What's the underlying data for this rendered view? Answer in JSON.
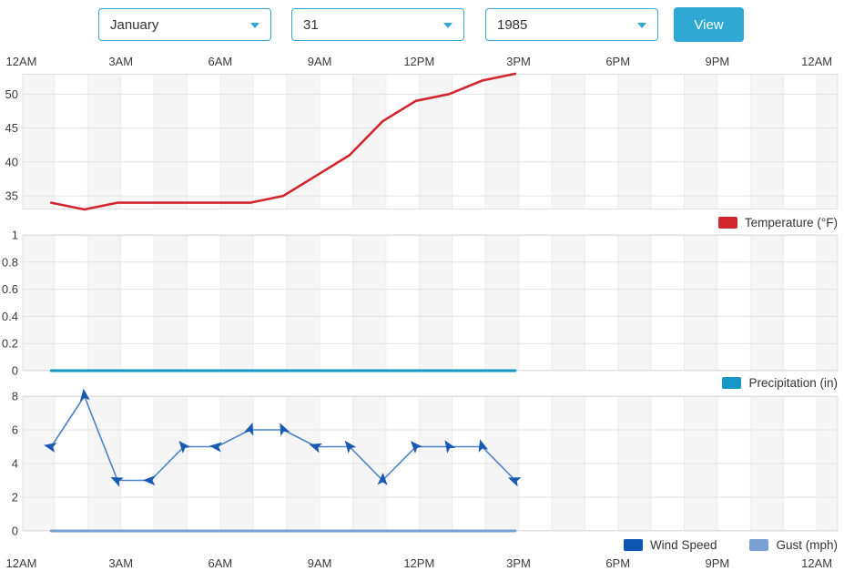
{
  "toolbar": {
    "month": "January",
    "day": "31",
    "year": "1985",
    "view_label": "View",
    "accent_color": "#2fa8d4"
  },
  "time_axis": {
    "labels": [
      "12AM",
      "3AM",
      "6AM",
      "9AM",
      "12PM",
      "3PM",
      "6PM",
      "9PM",
      "12AM"
    ],
    "tick_hours": [
      0,
      3,
      6,
      9,
      12,
      15,
      18,
      21,
      24
    ],
    "data_hours": [
      0.9,
      1.9,
      2.9,
      3.9,
      4.9,
      5.9,
      6.9,
      7.9,
      8.9,
      9.9,
      10.9,
      11.9,
      12.9,
      13.9,
      14.9
    ]
  },
  "chart_data": [
    {
      "type": "line",
      "legend": "Temperature (°F)",
      "color": "#d2262e",
      "line_width": 2.6,
      "ylim": [
        33,
        53
      ],
      "yticks": [
        35,
        40,
        45,
        50
      ],
      "values": [
        34,
        33,
        34,
        34,
        34,
        34,
        34,
        35,
        38,
        41,
        46,
        49,
        50,
        52,
        53
      ]
    },
    {
      "type": "line",
      "legend": "Precipitation (in)",
      "color": "#1598c6",
      "line_width": 3,
      "ylim": [
        0,
        1
      ],
      "yticks": [
        0,
        0.2,
        0.4,
        0.6,
        0.8,
        1
      ],
      "values": [
        0,
        0,
        0,
        0,
        0,
        0,
        0,
        0,
        0,
        0,
        0,
        0,
        0,
        0,
        0
      ]
    },
    {
      "type": "line",
      "ylim": [
        0,
        8
      ],
      "yticks": [
        0,
        2,
        4,
        6,
        8
      ],
      "series": [
        {
          "name": "Wind Speed",
          "line_color": "#4d82c4",
          "marker_color": "#1a5ab2",
          "legend_color": "#0b57b2",
          "line_width": 1.6,
          "values": [
            5,
            8,
            3,
            3,
            5,
            5,
            6,
            6,
            5,
            5,
            3,
            5,
            5,
            5,
            3
          ],
          "arrow_angles": [
            192,
            263,
            205,
            182,
            230,
            186,
            289,
            244,
            198,
            232,
            272,
            228,
            237,
            254,
            201
          ]
        },
        {
          "name": "Gust (mph)",
          "line_color": "#7aa0d4",
          "legend_color": "#7aa0d4",
          "line_width": 3,
          "values": [
            0,
            0,
            0,
            0,
            0,
            0,
            0,
            0,
            0,
            0,
            0,
            0,
            0,
            0,
            0
          ]
        }
      ]
    }
  ],
  "grid": {
    "band_color": "#f5f5f5",
    "hgrid_color": "#e2e2e2",
    "vgrid_color": "#ededed",
    "border_color": "#e0e0e0",
    "tick_color": "#3c3c3c"
  }
}
